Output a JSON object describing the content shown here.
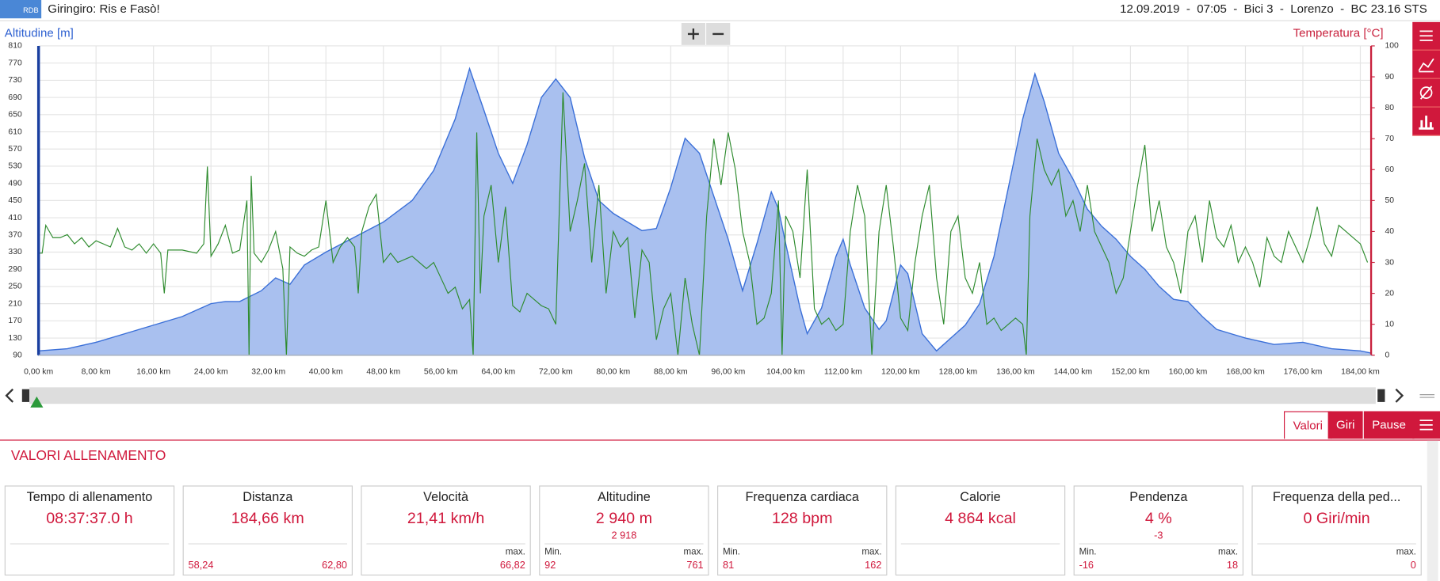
{
  "header": {
    "title": "Giringiro: Ris e Fasò!",
    "info": "12.09.2019  -  07:05  -  Bici 3  -  Lorenzo  -  BC 23.16 STS",
    "logo": "RDB"
  },
  "chart_data": {
    "type": "area_line",
    "ylabel": "Altitudine [m]",
    "y2label": "Temperatura [°C]",
    "xlim": [
      0,
      185.5
    ],
    "ylim": [
      90,
      810
    ],
    "y2lim": [
      0,
      100
    ],
    "grid": true,
    "xticks": [
      {
        "value": 0,
        "label": "0,00 km"
      },
      {
        "value": 8,
        "label": "8,00 km"
      },
      {
        "value": 16,
        "label": "16,00 km"
      },
      {
        "value": 24,
        "label": "24,00 km"
      },
      {
        "value": 32,
        "label": "32,00 km"
      },
      {
        "value": 40,
        "label": "40,00 km"
      },
      {
        "value": 48,
        "label": "48,00 km"
      },
      {
        "value": 56,
        "label": "56,00 km"
      },
      {
        "value": 64,
        "label": "64,00 km"
      },
      {
        "value": 72,
        "label": "72,00 km"
      },
      {
        "value": 80,
        "label": "80,00 km"
      },
      {
        "value": 88,
        "label": "88,00 km"
      },
      {
        "value": 96,
        "label": "96,00 km"
      },
      {
        "value": 104,
        "label": "104,00 km"
      },
      {
        "value": 112,
        "label": "112,00 km"
      },
      {
        "value": 120,
        "label": "120,00 km"
      },
      {
        "value": 128,
        "label": "128,00 km"
      },
      {
        "value": 136,
        "label": "136,00 km"
      },
      {
        "value": 144,
        "label": "144,00 km"
      },
      {
        "value": 152,
        "label": "152,00 km"
      },
      {
        "value": 160,
        "label": "160,00 km"
      },
      {
        "value": 168,
        "label": "168,00 km"
      },
      {
        "value": 176,
        "label": "176,00 km"
      },
      {
        "value": 184,
        "label": "184,00 km"
      }
    ],
    "yticks": [
      90,
      130,
      170,
      210,
      250,
      290,
      330,
      370,
      410,
      450,
      490,
      530,
      570,
      610,
      650,
      690,
      730,
      770,
      810
    ],
    "y2ticks": [
      0,
      10,
      20,
      30,
      40,
      50,
      60,
      70,
      80,
      90,
      100
    ],
    "series": [
      {
        "kind": "area",
        "color": "#3a6fd8",
        "fill": "#a9c0ef",
        "x": [
          0,
          4,
          8,
          12,
          16,
          20,
          24,
          26,
          28,
          31,
          33,
          35,
          37,
          40,
          44,
          48,
          52,
          55,
          58,
          60,
          62,
          64,
          66,
          68,
          70,
          72,
          74,
          76,
          78,
          80,
          82,
          84,
          86,
          88,
          90,
          92,
          94,
          96,
          98,
          100,
          102,
          103,
          104,
          106,
          107,
          109,
          111,
          112,
          113,
          115,
          117,
          118,
          120,
          121,
          123,
          125,
          127,
          129,
          131,
          133,
          135,
          137,
          138.7,
          140,
          142,
          144,
          146,
          148,
          150,
          152,
          154,
          156,
          158,
          160,
          162,
          164,
          166,
          168,
          172,
          176,
          180,
          184,
          185.5
        ],
        "values": [
          100,
          105,
          120,
          140,
          160,
          180,
          210,
          215,
          215,
          240,
          270,
          255,
          300,
          330,
          365,
          400,
          450,
          520,
          640,
          757,
          660,
          560,
          490,
          580,
          690,
          733,
          690,
          550,
          450,
          420,
          400,
          380,
          385,
          480,
          595,
          560,
          460,
          360,
          240,
          350,
          470,
          430,
          350,
          200,
          140,
          200,
          320,
          360,
          300,
          200,
          150,
          170,
          300,
          280,
          140,
          100,
          130,
          160,
          210,
          320,
          480,
          640,
          745,
          680,
          560,
          500,
          430,
          390,
          360,
          320,
          290,
          250,
          220,
          215,
          180,
          150,
          140,
          130,
          115,
          120,
          105,
          100,
          95
        ]
      },
      {
        "kind": "line",
        "axis": "y2",
        "color": "#2e8b2e",
        "x": [
          0,
          0.5,
          1,
          2,
          3,
          4,
          5,
          6,
          7,
          8,
          10,
          11,
          12,
          13,
          14,
          15,
          16,
          17,
          17.5,
          18,
          20,
          22,
          23,
          23.5,
          24,
          25,
          26,
          27,
          28,
          29,
          29.3,
          29.6,
          30,
          31,
          32,
          33,
          34,
          34.5,
          35,
          36,
          37,
          38,
          39,
          40,
          41,
          42,
          43,
          44,
          44.5,
          45,
          46,
          47,
          48,
          49,
          50,
          52,
          54,
          55,
          56,
          57,
          58,
          59,
          60,
          60.5,
          61,
          61.5,
          62,
          63,
          64,
          65,
          66,
          67,
          68,
          69,
          70,
          71,
          72,
          73,
          74,
          75,
          76,
          77,
          78,
          79,
          80,
          81,
          82,
          83,
          84,
          85,
          86,
          87,
          88,
          89,
          90,
          91,
          92,
          93,
          94,
          95,
          96,
          97,
          98,
          99,
          100,
          101,
          102,
          103,
          103.5,
          104,
          105,
          106,
          107,
          108,
          109,
          110,
          111,
          112,
          113,
          114,
          115,
          116,
          117,
          118,
          119,
          120,
          121,
          122,
          123,
          124,
          125,
          126,
          127,
          128,
          129,
          130,
          131,
          132,
          133,
          134,
          135,
          136,
          137,
          137.5,
          138,
          139,
          140,
          141,
          142,
          143,
          144,
          145,
          146,
          147,
          148,
          149,
          150,
          151,
          152,
          153,
          154,
          155,
          156,
          157,
          158,
          159,
          160,
          161,
          162,
          163,
          164,
          165,
          166,
          167,
          168,
          169,
          170,
          171,
          172,
          173,
          174,
          175,
          176,
          177,
          178,
          179,
          180,
          181,
          182,
          183,
          184,
          185
        ],
        "values": [
          33,
          33,
          42,
          38,
          38,
          39,
          36,
          38,
          35,
          37,
          35,
          41,
          35,
          34,
          36,
          33,
          36,
          33,
          20,
          34,
          34,
          33,
          36,
          61,
          32,
          36,
          42,
          33,
          34,
          50,
          0,
          58,
          33,
          30,
          34,
          40,
          28,
          0,
          35,
          33,
          32,
          34,
          35,
          50,
          30,
          35,
          38,
          35,
          20,
          40,
          48,
          52,
          30,
          33,
          30,
          32,
          28,
          30,
          25,
          20,
          22,
          15,
          18,
          0,
          72,
          20,
          45,
          55,
          30,
          48,
          16,
          14,
          20,
          18,
          16,
          15,
          10,
          85,
          40,
          50,
          62,
          30,
          55,
          20,
          40,
          35,
          38,
          12,
          34,
          30,
          5,
          15,
          20,
          0,
          25,
          10,
          0,
          45,
          70,
          55,
          72,
          60,
          40,
          30,
          10,
          12,
          20,
          50,
          0,
          45,
          40,
          25,
          60,
          15,
          10,
          12,
          8,
          10,
          40,
          55,
          45,
          0,
          40,
          55,
          35,
          12,
          8,
          30,
          45,
          55,
          25,
          10,
          40,
          45,
          25,
          20,
          30,
          10,
          12,
          8,
          10,
          12,
          10,
          0,
          45,
          70,
          60,
          55,
          60,
          45,
          50,
          40,
          55,
          40,
          35,
          30,
          20,
          25,
          40,
          55,
          68,
          40,
          50,
          35,
          30,
          20,
          40,
          45,
          30,
          50,
          38,
          35,
          42,
          30,
          35,
          30,
          22,
          38,
          32,
          30,
          40,
          35,
          30,
          38,
          48,
          36,
          32,
          42,
          40,
          38,
          36,
          30
        ]
      }
    ]
  },
  "tabs": [
    "Valori",
    "Giri",
    "Pause"
  ],
  "section_title": "VALORI ALLENAMENTO",
  "cards": [
    {
      "title": "Tempo di allenamento",
      "value": "08:37:37.0 h"
    },
    {
      "title": "Distanza",
      "value": "184,66 km",
      "min": "58,24",
      "max": "62,80"
    },
    {
      "title": "Velocità",
      "value": "21,41 km/h",
      "max_label": "max.",
      "max": "66,82"
    },
    {
      "title": "Altitudine",
      "value": "2 940 m",
      "sub": "2 918",
      "min_label": "Min.",
      "min": "92",
      "max_label": "max.",
      "max": "761"
    },
    {
      "title": "Frequenza cardiaca",
      "value": "128 bpm",
      "min_label": "Min.",
      "min": "81",
      "max_label": "max.",
      "max": "162"
    },
    {
      "title": "Calorie",
      "value": "4 864 kcal"
    },
    {
      "title": "Pendenza",
      "value": "4 %",
      "sub": "-3",
      "min_label": "Min.",
      "min": "-16",
      "max_label": "max.",
      "max": "18"
    },
    {
      "title": "Frequenza della ped...",
      "value": "0 Giri/min",
      "max_label": "max.",
      "max": "0"
    }
  ]
}
